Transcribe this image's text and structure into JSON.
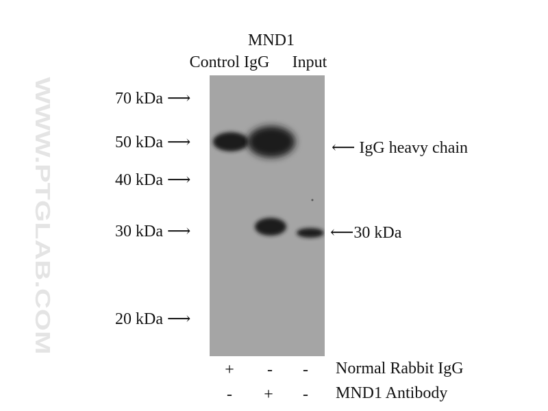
{
  "lanes": [
    "Control IgG",
    "MND1",
    "Input"
  ],
  "markers": [
    {
      "label": "70 kDa"
    },
    {
      "label": "50 kDa"
    },
    {
      "label": "40 kDa"
    },
    {
      "label": "30 kDa"
    },
    {
      "label": "20 kDa"
    }
  ],
  "annotations": {
    "heavy_chain": "IgG heavy chain",
    "target": "30 kDa"
  },
  "conditions": [
    {
      "label": "Normal Rabbit IgG",
      "signs": [
        "+",
        "-",
        "-"
      ]
    },
    {
      "label": "MND1 Antibody",
      "signs": [
        "-",
        "+",
        "-"
      ]
    }
  ],
  "watermark": "WWW.PTGLAB.COM",
  "colors": {
    "membrane": "#a5a5a5",
    "band": "#1a1a1a"
  }
}
